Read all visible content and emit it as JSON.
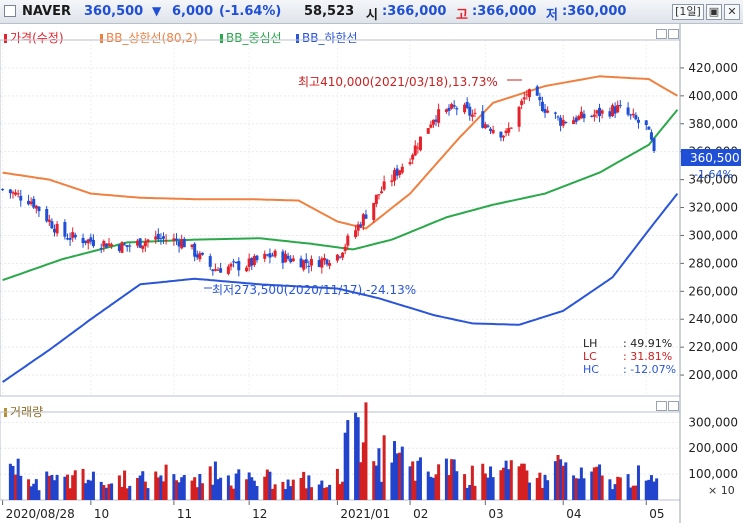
{
  "header": {
    "stock_name": "NAVER",
    "price": "360,500",
    "change_arrow": "▼",
    "change": "6,000",
    "change_pct": "(-1.64%)",
    "volume": "58,523",
    "open_label": "시",
    "open": ":366,000",
    "high_label": "고",
    "high": ":366,000",
    "low_label": "저",
    "low": ":360,000",
    "period": "[1일]"
  },
  "colors": {
    "up": "#e8202a",
    "down": "#1f4fd6",
    "bb_upper": "#f08040",
    "bb_middle": "#2aa84a",
    "bb_lower": "#2a55d8",
    "volume_up": "#d42020",
    "volume_down": "#2244cc"
  },
  "legend": {
    "price": "가격(수정)",
    "bb_upper": "BB_상한선(80,2)",
    "bb_middle": "BB_중심선",
    "bb_lower": "BB_하한선",
    "volume": "거래량"
  },
  "annotations": {
    "high": "최고410,000(2021/03/18),13.73%",
    "low": "최저273,500(2020/11/17),-24.13%"
  },
  "stats": {
    "lh_label": "LH",
    "lh": ": 49.91%",
    "lc_label": "LC",
    "lc": ": 31.81%",
    "hc_label": "HC",
    "hc": ": -12.07%"
  },
  "price_tag": {
    "value": "360,500",
    "pct": "-1.64%"
  },
  "volume_unit": "× 10",
  "chart_data": [
    {
      "type": "candlestick",
      "title": "",
      "y_ticks": [
        "420,000",
        "400,000",
        "380,000",
        "360,000",
        "340,000",
        "320,000",
        "300,000",
        "280,000",
        "260,000",
        "240,000",
        "220,000",
        "200,000"
      ],
      "ylim": [
        185000,
        440000
      ],
      "x_ticks": [
        "2020/08/28",
        "10",
        "11",
        "12",
        "2021/01",
        "02",
        "03",
        "04",
        "05"
      ],
      "x_tick_dates": [
        "2020-08-28",
        "2020-10-01",
        "2020-11-02",
        "2020-12-01",
        "2021-01-04",
        "2021-02-01",
        "2021-03-02",
        "2021-04-01",
        "2021-05-03"
      ],
      "x_range": [
        "2020-08-27",
        "2021-05-16"
      ],
      "bollinger": {
        "upper": [
          [
            "2020-08-28",
            345000
          ],
          [
            "2020-09-15",
            340000
          ],
          [
            "2020-10-01",
            330000
          ],
          [
            "2020-10-20",
            327000
          ],
          [
            "2020-11-10",
            326000
          ],
          [
            "2020-12-01",
            326000
          ],
          [
            "2020-12-20",
            325000
          ],
          [
            "2021-01-04",
            310000
          ],
          [
            "2021-01-15",
            305000
          ],
          [
            "2021-02-01",
            330000
          ],
          [
            "2021-02-20",
            370000
          ],
          [
            "2021-03-05",
            395000
          ],
          [
            "2021-03-25",
            407000
          ],
          [
            "2021-04-15",
            414000
          ],
          [
            "2021-05-04",
            412000
          ],
          [
            "2021-05-15",
            400000
          ]
        ],
        "middle": [
          [
            "2020-08-28",
            268000
          ],
          [
            "2020-09-20",
            283000
          ],
          [
            "2020-10-15",
            295000
          ],
          [
            "2020-11-10",
            297000
          ],
          [
            "2020-12-05",
            298000
          ],
          [
            "2020-12-25",
            294000
          ],
          [
            "2021-01-10",
            290000
          ],
          [
            "2021-01-25",
            297000
          ],
          [
            "2021-02-15",
            313000
          ],
          [
            "2021-03-05",
            322000
          ],
          [
            "2021-03-25",
            330000
          ],
          [
            "2021-04-15",
            345000
          ],
          [
            "2021-05-04",
            365000
          ],
          [
            "2021-05-15",
            390000
          ]
        ],
        "lower": [
          [
            "2020-08-28",
            195000
          ],
          [
            "2020-09-15",
            218000
          ],
          [
            "2020-10-01",
            240000
          ],
          [
            "2020-10-20",
            265000
          ],
          [
            "2020-11-10",
            269000
          ],
          [
            "2020-12-05",
            265000
          ],
          [
            "2021-01-04",
            262000
          ],
          [
            "2021-01-20",
            255000
          ],
          [
            "2021-02-10",
            243000
          ],
          [
            "2021-02-25",
            237000
          ],
          [
            "2021-03-15",
            236000
          ],
          [
            "2021-04-01",
            246000
          ],
          [
            "2021-04-20",
            270000
          ],
          [
            "2021-05-04",
            304000
          ],
          [
            "2021-05-15",
            330000
          ]
        ]
      },
      "close": [
        [
          "2020-08-28",
          333000
        ],
        [
          "2020-09-08",
          325000
        ],
        [
          "2020-09-20",
          300000
        ],
        [
          "2020-10-01",
          296000
        ],
        [
          "2020-10-15",
          292000
        ],
        [
          "2020-10-25",
          298000
        ],
        [
          "2020-11-05",
          296000
        ],
        [
          "2020-11-17",
          276000
        ],
        [
          "2020-11-30",
          279000
        ],
        [
          "2020-12-10",
          286000
        ],
        [
          "2020-12-25",
          280000
        ],
        [
          "2021-01-04",
          286000
        ],
        [
          "2021-01-11",
          304000
        ],
        [
          "2021-01-20",
          330000
        ],
        [
          "2021-02-01",
          357000
        ],
        [
          "2021-02-10",
          385000
        ],
        [
          "2021-02-20",
          392000
        ],
        [
          "2021-03-02",
          380000
        ],
        [
          "2021-03-10",
          372000
        ],
        [
          "2021-03-18",
          402000
        ],
        [
          "2021-03-31",
          382000
        ],
        [
          "2021-04-10",
          385000
        ],
        [
          "2021-04-22",
          391000
        ],
        [
          "2021-05-03",
          377000
        ],
        [
          "2021-05-06",
          360500
        ]
      ],
      "last_close": 360500,
      "high_point": {
        "date": "2021-03-18",
        "value": 410000
      },
      "low_point": {
        "date": "2020-11-17",
        "value": 273500
      }
    },
    {
      "type": "bar",
      "title": "",
      "series_name": "거래량",
      "y_ticks": [
        "300,000",
        "200,000",
        "100,000"
      ],
      "ylim": [
        0,
        340000
      ],
      "bars": [
        [
          "2020-08-31",
          140000,
          "d"
        ],
        [
          "2020-09-07",
          80000,
          "u"
        ],
        [
          "2020-09-14",
          110000,
          "d"
        ],
        [
          "2020-09-21",
          90000,
          "u"
        ],
        [
          "2020-09-28",
          120000,
          "d"
        ],
        [
          "2020-10-05",
          70000,
          "u"
        ],
        [
          "2020-10-12",
          95000,
          "u"
        ],
        [
          "2020-10-19",
          85000,
          "d"
        ],
        [
          "2020-10-26",
          110000,
          "u"
        ],
        [
          "2020-11-02",
          100000,
          "d"
        ],
        [
          "2020-11-09",
          75000,
          "u"
        ],
        [
          "2020-11-16",
          130000,
          "d"
        ],
        [
          "2020-11-23",
          95000,
          "u"
        ],
        [
          "2020-11-30",
          80000,
          "d"
        ],
        [
          "2020-12-07",
          90000,
          "u"
        ],
        [
          "2020-12-14",
          70000,
          "d"
        ],
        [
          "2020-12-21",
          85000,
          "u"
        ],
        [
          "2020-12-28",
          60000,
          "d"
        ],
        [
          "2021-01-04",
          120000,
          "u"
        ],
        [
          "2021-01-07",
          260000,
          "u"
        ],
        [
          "2021-01-12",
          320000,
          "u"
        ],
        [
          "2021-01-18",
          150000,
          "d"
        ],
        [
          "2021-01-22",
          250000,
          "u"
        ],
        [
          "2021-01-27",
          180000,
          "d"
        ],
        [
          "2021-02-01",
          130000,
          "u"
        ],
        [
          "2021-02-08",
          110000,
          "d"
        ],
        [
          "2021-02-15",
          160000,
          "u"
        ],
        [
          "2021-02-22",
          100000,
          "d"
        ],
        [
          "2021-03-01",
          140000,
          "d"
        ],
        [
          "2021-03-08",
          115000,
          "u"
        ],
        [
          "2021-03-15",
          130000,
          "u"
        ],
        [
          "2021-03-22",
          85000,
          "d"
        ],
        [
          "2021-03-29",
          150000,
          "u"
        ],
        [
          "2021-04-05",
          95000,
          "d"
        ],
        [
          "2021-04-12",
          110000,
          "u"
        ],
        [
          "2021-04-19",
          80000,
          "d"
        ],
        [
          "2021-04-26",
          100000,
          "d"
        ],
        [
          "2021-05-03",
          75000,
          "d"
        ]
      ]
    }
  ]
}
